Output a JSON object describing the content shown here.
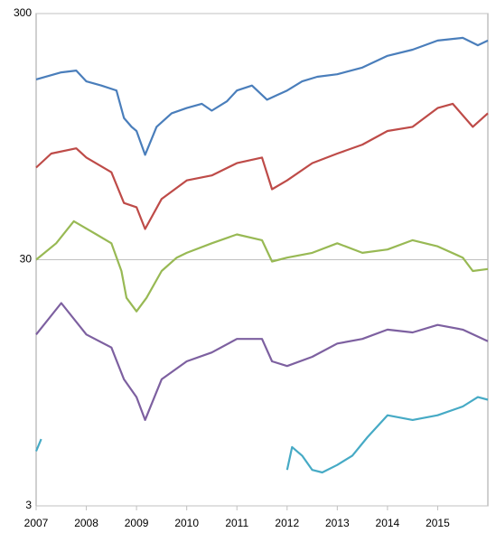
{
  "chart_data": {
    "type": "line",
    "log_y": true,
    "grid": true,
    "xlim": [
      2007,
      2016
    ],
    "xticks": [
      2007,
      2008,
      2009,
      2010,
      2011,
      2012,
      2013,
      2014,
      2015
    ],
    "ylim": [
      3,
      300
    ],
    "yticks": [
      3,
      30,
      300
    ],
    "series": [
      {
        "color": "#4a7ebb",
        "x": [
          2007,
          2007.5,
          2007.8,
          2008,
          2008.3,
          2008.6,
          2008.75,
          2008.9,
          2009,
          2009.17,
          2009.4,
          2009.7,
          2010,
          2010.3,
          2010.5,
          2010.8,
          2011,
          2011.3,
          2011.6,
          2011.8,
          2012,
          2012.3,
          2012.6,
          2013,
          2013.5,
          2014,
          2014.5,
          2015,
          2015.5,
          2015.8,
          2016
        ],
        "values": [
          162,
          173,
          176,
          159,
          153,
          146,
          113,
          104,
          100,
          80,
          104,
          118,
          124,
          129,
          121,
          132,
          146,
          153,
          134,
          140,
          146,
          159,
          166,
          170,
          181,
          202,
          214,
          233,
          239,
          223,
          233
        ]
      },
      {
        "color": "#be4b48",
        "x": [
          2007,
          2007.3,
          2007.8,
          2008,
          2008.5,
          2008.75,
          2009,
          2009.17,
          2009.5,
          2010,
          2010.5,
          2011,
          2011.5,
          2011.7,
          2012,
          2012.5,
          2013,
          2013.5,
          2014,
          2014.5,
          2015,
          2015.3,
          2015.7,
          2016
        ],
        "values": [
          71,
          81,
          85,
          78,
          68,
          51,
          49,
          40,
          53,
          63,
          66,
          74,
          78,
          58,
          63,
          74,
          81,
          88,
          100,
          104,
          124,
          129,
          104,
          118
        ]
      },
      {
        "color": "#98b954",
        "x": [
          2007,
          2007.4,
          2007.75,
          2008.2,
          2008.5,
          2008.7,
          2008.8,
          2009,
          2009.2,
          2009.5,
          2009.8,
          2010,
          2010.5,
          2011,
          2011.5,
          2011.7,
          2012,
          2012.5,
          2013,
          2013.5,
          2014,
          2014.5,
          2015,
          2015.5,
          2015.7,
          2016
        ],
        "values": [
          30,
          35,
          43,
          38,
          35,
          27,
          21,
          18.5,
          21,
          27,
          30.6,
          32,
          35,
          38,
          36,
          29.5,
          30.6,
          32,
          35,
          32,
          33,
          36,
          34,
          30.6,
          27,
          27.5
        ]
      },
      {
        "color": "#7d60a0",
        "x": [
          2007,
          2007.5,
          2008,
          2008.5,
          2008.75,
          2009,
          2009.17,
          2009.5,
          2010,
          2010.5,
          2011,
          2011.5,
          2011.7,
          2012,
          2012.5,
          2013,
          2013.5,
          2014,
          2014.5,
          2015,
          2015.5,
          2016
        ],
        "values": [
          14.9,
          20,
          14.9,
          13.2,
          9.8,
          8.3,
          6.7,
          9.8,
          11.6,
          12.6,
          14.3,
          14.3,
          11.6,
          11.1,
          12.1,
          13.7,
          14.3,
          15.6,
          15.2,
          16.3,
          15.6,
          14.0
        ]
      },
      {
        "color": "#46aac5",
        "x": [
          2007,
          2007.1,
          2009.5,
          2012,
          2012.1,
          2012.3,
          2012.5,
          2012.7,
          2013,
          2013.3,
          2013.6,
          2014,
          2014.5,
          2015,
          2015.5,
          2015.8,
          2016
        ],
        "values": [
          5.0,
          5.6,
          null,
          4.2,
          5.2,
          4.8,
          4.2,
          4.1,
          4.4,
          4.8,
          5.7,
          7.0,
          6.7,
          7.0,
          7.6,
          8.3,
          8.1
        ]
      }
    ]
  }
}
